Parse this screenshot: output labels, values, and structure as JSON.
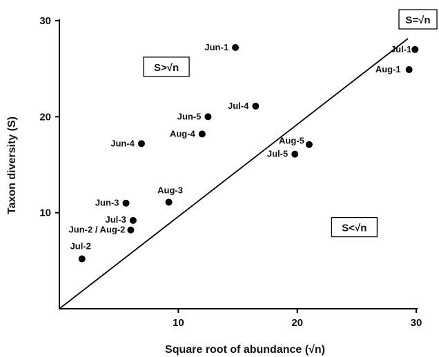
{
  "chart_data": {
    "type": "scatter",
    "xlabel": "Square root of abundance (√n)",
    "ylabel": "Taxon diversity (S)",
    "xlim": [
      0,
      30
    ],
    "ylim": [
      0,
      30
    ],
    "xticks": [
      10,
      20,
      30
    ],
    "yticks": [
      10,
      20,
      30
    ],
    "grid": false,
    "reference_line": {
      "label": "S=√n",
      "x": [
        0,
        30
      ],
      "y": [
        0,
        30
      ]
    },
    "region_labels": [
      {
        "text": "S>√n",
        "x": 9,
        "y": 25.2
      },
      {
        "text": "S<√n",
        "x": 24.8,
        "y": 8.5
      }
    ],
    "points": [
      {
        "label": "Jun-1",
        "x": 14.8,
        "y": 27.2
      },
      {
        "label": "Jul-1",
        "x": 29.9,
        "y": 27.0
      },
      {
        "label": "Aug-1",
        "x": 29.4,
        "y": 24.9
      },
      {
        "label": "Jul-4",
        "x": 16.5,
        "y": 21.1
      },
      {
        "label": "Jun-5",
        "x": 12.5,
        "y": 20.0
      },
      {
        "label": "Aug-4",
        "x": 12.0,
        "y": 18.2
      },
      {
        "label": "Jun-4",
        "x": 6.9,
        "y": 17.2
      },
      {
        "label": "Aug-5",
        "x": 21.0,
        "y": 17.1
      },
      {
        "label": "Jul-5",
        "x": 19.8,
        "y": 16.1
      },
      {
        "label": "Aug-3",
        "x": 9.2,
        "y": 11.1
      },
      {
        "label": "Jun-3",
        "x": 5.6,
        "y": 11.0
      },
      {
        "label": "Jul-3",
        "x": 6.2,
        "y": 9.2
      },
      {
        "label": "Jun-2 / Aug-2",
        "x": 6.0,
        "y": 8.2
      },
      {
        "label": "Jul-2",
        "x": 1.9,
        "y": 5.2
      }
    ]
  }
}
